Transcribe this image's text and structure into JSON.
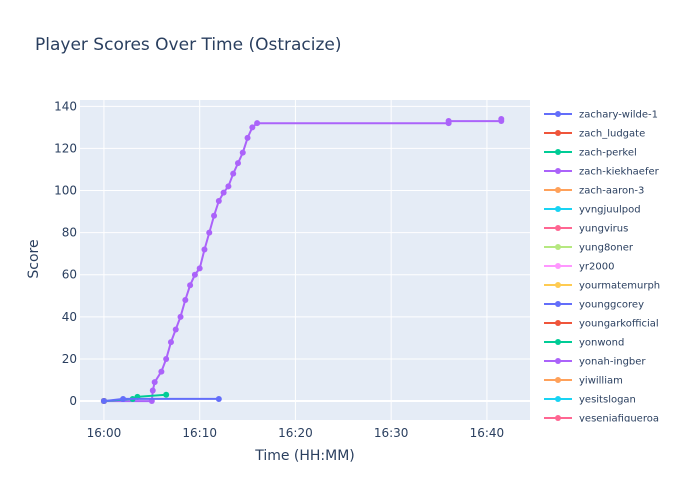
{
  "chart_data": {
    "type": "line",
    "title": "Player Scores Over Time (Ostracize)",
    "xlabel": "Time (HH:MM)",
    "ylabel": "Score",
    "xlim": [
      "15:57.5",
      "16:44.5"
    ],
    "ylim": [
      -9,
      143
    ],
    "x_ticks": [
      "16:00",
      "16:10",
      "16:20",
      "16:30",
      "16:40"
    ],
    "y_ticks": [
      0,
      20,
      40,
      60,
      80,
      100,
      120,
      140
    ],
    "grid": true,
    "legend_position": "right",
    "series": [
      {
        "name": "zachary-wilde-1",
        "color": "#636efa",
        "points": [
          [
            "16:00",
            0
          ],
          [
            "16:02",
            1
          ],
          [
            "16:12",
            1
          ]
        ]
      },
      {
        "name": "zach_ludgate",
        "color": "#EF553B",
        "points": [
          [
            "16:00",
            0
          ]
        ]
      },
      {
        "name": "zach-perkel",
        "color": "#00cc96",
        "points": [
          [
            "16:00",
            0
          ],
          [
            "16:03",
            1
          ],
          [
            "16:03.5",
            2
          ],
          [
            "16:06.5",
            3
          ]
        ]
      },
      {
        "name": "zach-kiekhaefer",
        "color": "#ab63fa",
        "points": [
          [
            "16:00",
            0
          ],
          [
            "16:05",
            0
          ],
          [
            "16:05.1",
            5
          ],
          [
            "16:05.3",
            9
          ],
          [
            "16:06",
            14
          ],
          [
            "16:06.5",
            20
          ],
          [
            "16:07",
            28
          ],
          [
            "16:07.5",
            34
          ],
          [
            "16:08",
            40
          ],
          [
            "16:08.5",
            48
          ],
          [
            "16:09",
            55
          ],
          [
            "16:09.5",
            60
          ],
          [
            "16:10",
            63
          ],
          [
            "16:10.5",
            72
          ],
          [
            "16:11",
            80
          ],
          [
            "16:11.5",
            88
          ],
          [
            "16:12",
            95
          ],
          [
            "16:12.5",
            99
          ],
          [
            "16:13",
            102
          ],
          [
            "16:13.5",
            108
          ],
          [
            "16:14",
            113
          ],
          [
            "16:14.5",
            118
          ],
          [
            "16:15",
            125
          ],
          [
            "16:15.5",
            130
          ],
          [
            "16:16",
            132
          ],
          [
            "16:36",
            132
          ],
          [
            "16:36",
            133
          ],
          [
            "16:41.5",
            133
          ],
          [
            "16:41.5",
            134
          ]
        ]
      },
      {
        "name": "zach-aaron-3",
        "color": "#FFA15A",
        "points": [
          [
            "16:00",
            0
          ]
        ]
      },
      {
        "name": "yvngjuulpod",
        "color": "#19d3f3",
        "points": [
          [
            "16:00",
            0
          ]
        ]
      },
      {
        "name": "yungvirus",
        "color": "#FF6692",
        "points": [
          [
            "16:00",
            0
          ]
        ]
      },
      {
        "name": "yung8oner",
        "color": "#B6E880",
        "points": [
          [
            "16:00",
            0
          ]
        ]
      },
      {
        "name": "yr2000",
        "color": "#FF97FF",
        "points": [
          [
            "16:00",
            0
          ]
        ]
      },
      {
        "name": "yourmatemurph",
        "color": "#FECB52",
        "points": [
          [
            "16:00",
            0
          ]
        ]
      },
      {
        "name": "younggcorey",
        "color": "#636efa",
        "points": [
          [
            "16:00",
            0
          ]
        ]
      },
      {
        "name": "youngarkofficial",
        "color": "#EF553B",
        "points": [
          [
            "16:00",
            0
          ]
        ]
      },
      {
        "name": "yonwond",
        "color": "#00cc96",
        "points": [
          [
            "16:00",
            0
          ]
        ]
      },
      {
        "name": "yonah-ingber",
        "color": "#ab63fa",
        "points": [
          [
            "16:00",
            0
          ]
        ]
      },
      {
        "name": "yiwilliam",
        "color": "#FFA15A",
        "points": [
          [
            "16:00",
            0
          ]
        ]
      },
      {
        "name": "yesitslogan",
        "color": "#19d3f3",
        "points": [
          [
            "16:00",
            0
          ]
        ]
      },
      {
        "name": "yeseniafigueroa",
        "color": "#FF6692",
        "points": [
          [
            "16:00",
            0
          ]
        ]
      }
    ]
  }
}
